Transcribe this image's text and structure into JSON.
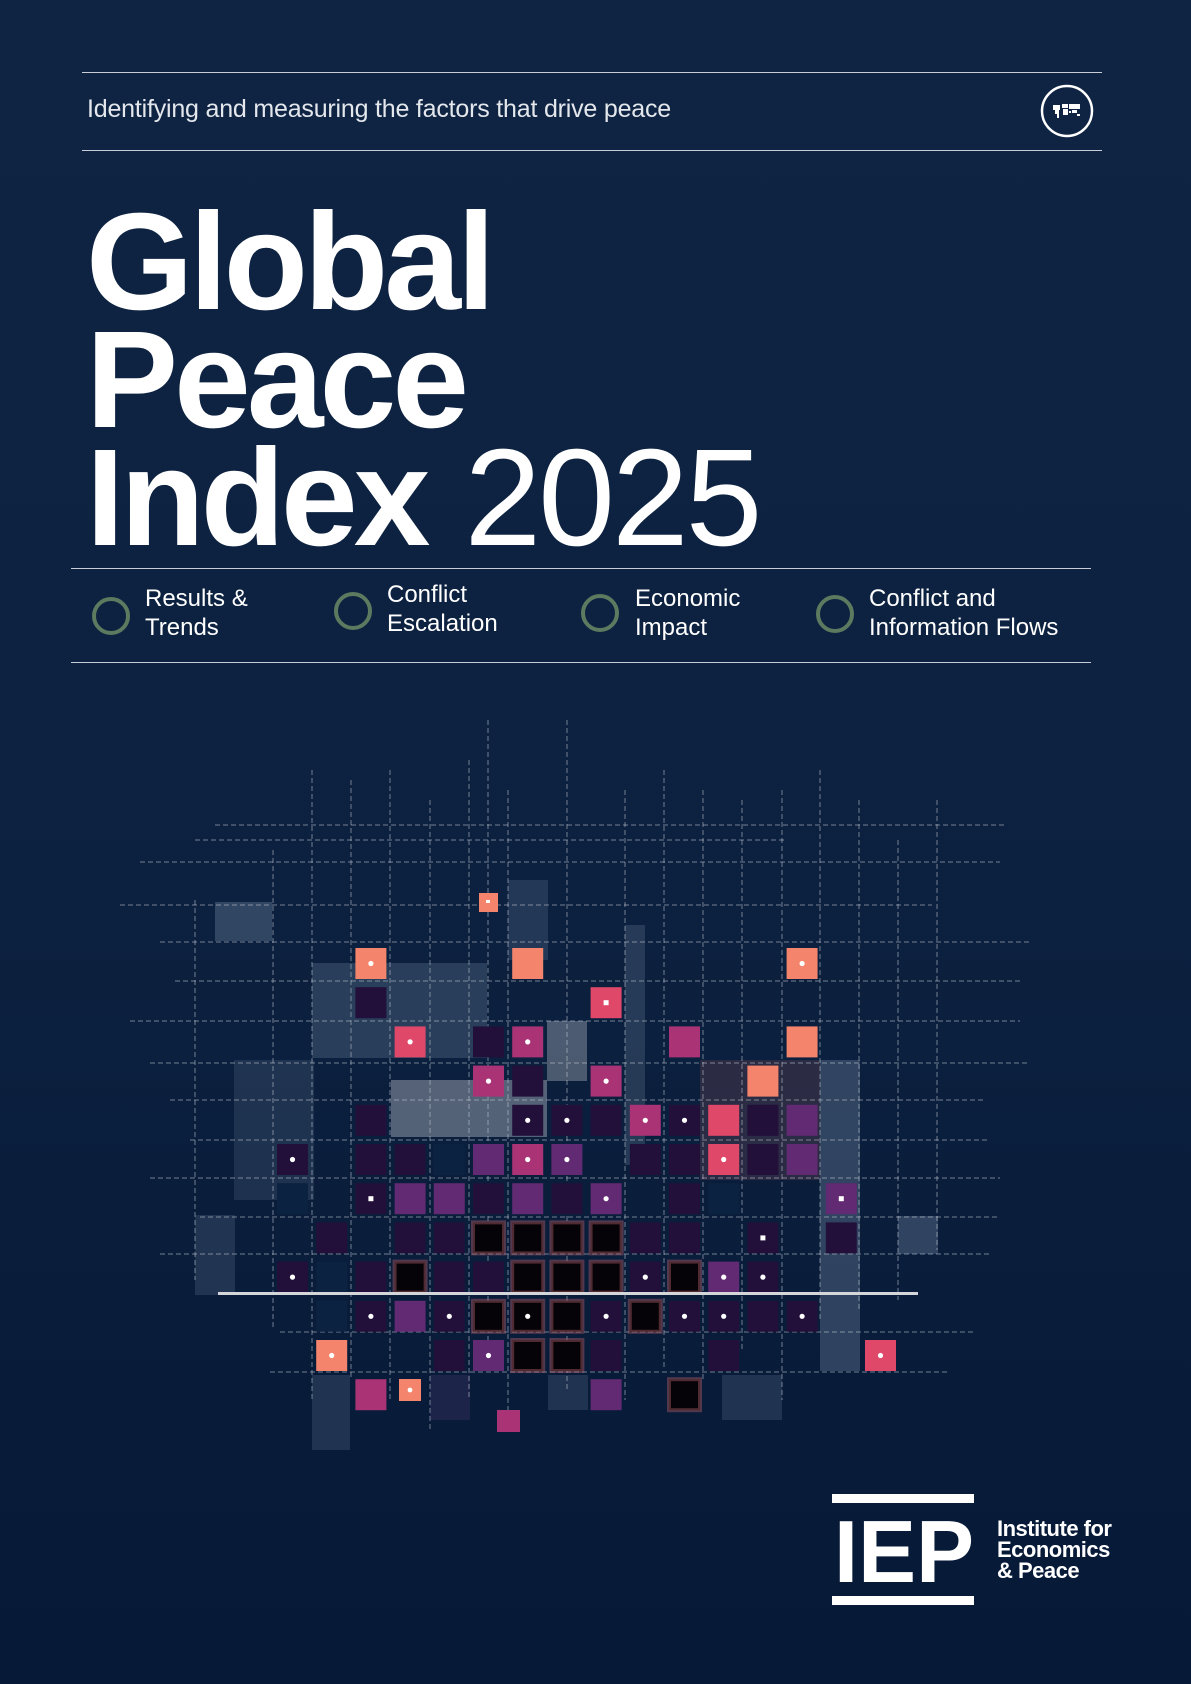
{
  "header": {
    "tagline": "Identifying and measuring the factors that drive peace",
    "icon": "globe-map-icon"
  },
  "title": {
    "line1": "Global",
    "line2": "Peace",
    "line3": "Index",
    "year": "2025"
  },
  "topics": [
    {
      "line1": "Results &",
      "line2": "Trends"
    },
    {
      "line1": "Conflict",
      "line2": "Escalation"
    },
    {
      "line1": "Economic",
      "line2": "Impact"
    },
    {
      "line1": "Conflict and",
      "line2": "Information Flows"
    }
  ],
  "colors": {
    "background": "#0c213f",
    "ring": "#5b7a5f",
    "salmon": "#f4846c",
    "red": "#e0486a",
    "magenta": "#a93375",
    "purple": "#612a72",
    "dark_purple": "#22103a",
    "black": "#050308",
    "navy": "#0b2240"
  },
  "publisher": {
    "logo_text": "IEP",
    "name_line1": "Institute for",
    "name_line2": "Economics",
    "name_line3": "& Peace"
  }
}
